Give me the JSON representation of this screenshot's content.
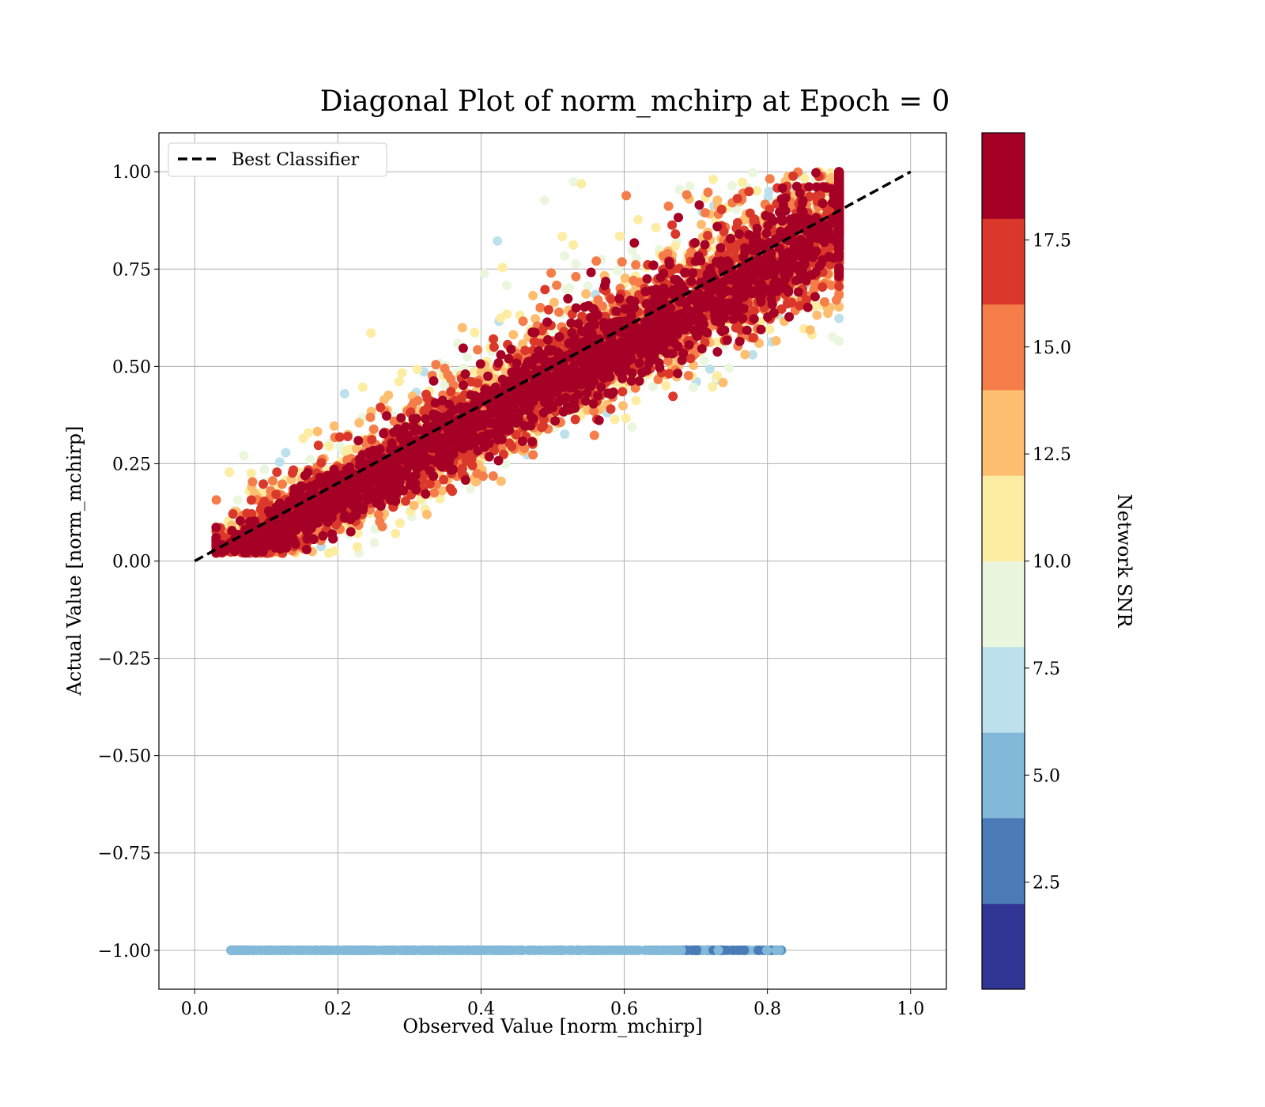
{
  "chart_data": {
    "type": "scatter",
    "title": "Diagonal Plot of norm_mchirp at Epoch = 0",
    "xlabel": "Observed Value [norm_mchirp]",
    "ylabel": "Actual Value [norm_mchirp]",
    "xlim": [
      -0.05,
      1.05
    ],
    "ylim": [
      -1.1,
      1.1
    ],
    "xticks": [
      0.0,
      0.2,
      0.4,
      0.6,
      0.8,
      1.0
    ],
    "xtick_labels": [
      "0.0",
      "0.2",
      "0.4",
      "0.6",
      "0.8",
      "1.0"
    ],
    "yticks": [
      1.0,
      0.75,
      0.5,
      0.25,
      0.0,
      -0.25,
      -0.5,
      -0.75,
      -1.0
    ],
    "ytick_labels": [
      "1.00",
      "0.75",
      "0.50",
      "0.25",
      "0.00",
      "−0.25",
      "−0.50",
      "−0.75",
      "−1.00"
    ],
    "grid": true,
    "legend": {
      "placement": "top-left",
      "entries": [
        "Best Classifier"
      ]
    },
    "reference_line": {
      "label": "Best Classifier",
      "style": "dashed",
      "color": "#000000",
      "x": [
        0.0,
        1.0
      ],
      "y": [
        0.0,
        1.0
      ]
    },
    "colorbar": {
      "label": "Network SNR",
      "range": [
        0.0,
        20.0
      ],
      "ticks": [
        2.5,
        5.0,
        7.5,
        10.0,
        12.5,
        15.0,
        17.5
      ],
      "tick_labels": [
        "2.5",
        "5.0",
        "7.5",
        "10.0",
        "12.5",
        "15.0",
        "17.5"
      ],
      "bins": [
        {
          "from": 0.0,
          "to": 2.0,
          "color": "#313695"
        },
        {
          "from": 2.0,
          "to": 4.0,
          "color": "#4a7bb7"
        },
        {
          "from": 4.0,
          "to": 6.0,
          "color": "#83b9d8"
        },
        {
          "from": 6.0,
          "to": 8.0,
          "color": "#bde1ec"
        },
        {
          "from": 8.0,
          "to": 10.0,
          "color": "#ebf6df"
        },
        {
          "from": 10.0,
          "to": 12.0,
          "color": "#fdeda2"
        },
        {
          "from": 12.0,
          "to": 14.0,
          "color": "#fdbe70"
        },
        {
          "from": 14.0,
          "to": 16.0,
          "color": "#f57d4a"
        },
        {
          "from": 16.0,
          "to": 18.0,
          "color": "#da382a"
        },
        {
          "from": 18.0,
          "to": 20.0,
          "color": "#a50026"
        }
      ]
    },
    "series": [
      {
        "group": "detected signals (actual value ~ observed value, spread decreases with SNR)",
        "x_range": [
          0.03,
          0.9
        ],
        "y_range": [
          0.0,
          1.0
        ],
        "snr_range": [
          0.0,
          20.0
        ]
      },
      {
        "group": "noise samples (actual value = -1)",
        "x_range": [
          0.05,
          0.82
        ],
        "y": -1.0,
        "snr_range": [
          2.0,
          6.0
        ]
      }
    ]
  }
}
